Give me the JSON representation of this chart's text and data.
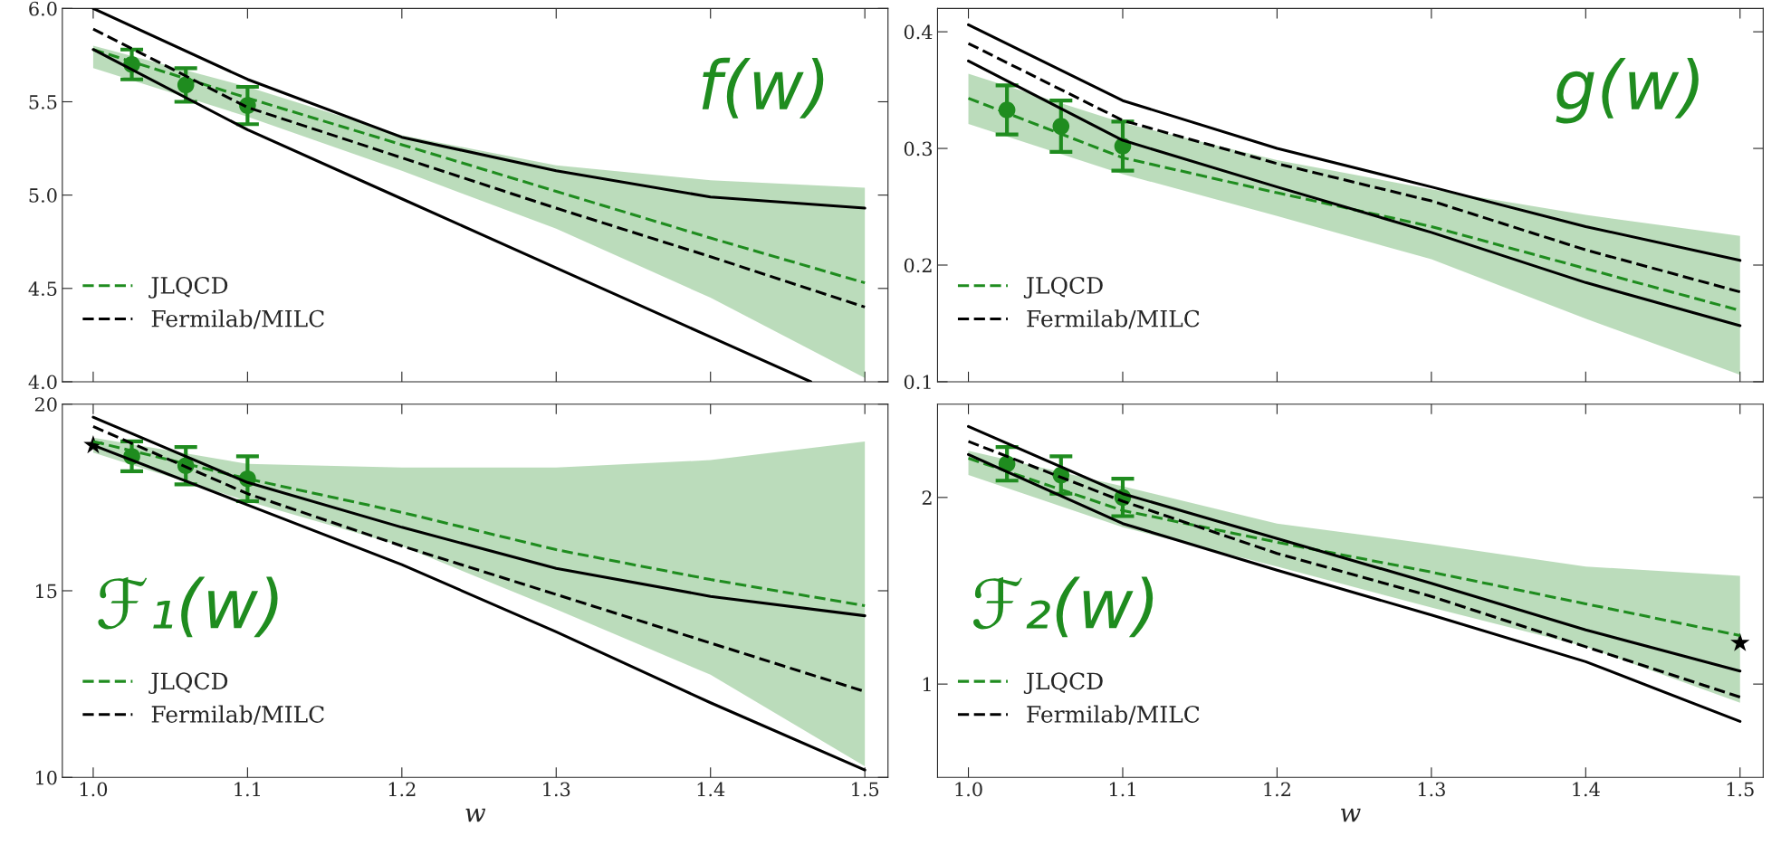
{
  "chart_data": [
    {
      "type": "line",
      "xlim": [
        0.98,
        1.515
      ],
      "ylim": [
        4.0,
        6.0
      ],
      "tick_labels": "y",
      "legend": "lower left",
      "annotations": [
        "f(w)"
      ],
      "xticks": [
        {
          "value": 1.0,
          "label": null
        },
        {
          "value": 1.1,
          "label": null
        },
        {
          "value": 1.2,
          "label": null
        },
        {
          "value": 1.3,
          "label": null
        },
        {
          "value": 1.4,
          "label": null
        },
        {
          "value": 1.5,
          "label": null
        }
      ],
      "yticks": [
        {
          "value": 4.0,
          "label": "4.0"
        },
        {
          "value": 4.5,
          "label": "4.5"
        },
        {
          "value": 5.0,
          "label": "5.0"
        },
        {
          "value": 5.5,
          "label": "5.5"
        },
        {
          "value": 6.0,
          "label": "6.0"
        }
      ],
      "series": [
        {
          "name": "JLQCD",
          "line_style": "dashed",
          "color": "#1f8c1f",
          "x": [
            1.0,
            1.1,
            1.2,
            1.3,
            1.4,
            1.5
          ],
          "values": [
            5.78,
            5.52,
            5.27,
            5.02,
            4.77,
            4.53
          ],
          "lower": [
            5.68,
            5.42,
            5.13,
            4.82,
            4.45,
            4.02
          ],
          "upper": [
            5.8,
            5.58,
            5.32,
            5.16,
            5.08,
            5.04
          ]
        },
        {
          "name": "Fermilab/MILC",
          "line_style": "dashed",
          "color": "#000000",
          "x": [
            1.0,
            1.1,
            1.2,
            1.3,
            1.4,
            1.5
          ],
          "values": [
            5.89,
            5.47,
            5.2,
            4.93,
            4.67,
            4.4
          ]
        },
        {
          "line_style": "solid",
          "color": "#000000",
          "x": [
            1.0,
            1.1,
            1.2,
            1.3,
            1.4,
            1.5
          ],
          "values": [
            6.0,
            5.62,
            5.31,
            5.13,
            4.99,
            4.93
          ]
        },
        {
          "line_style": "solid",
          "color": "#000000",
          "x": [
            1.0,
            1.1,
            1.2,
            1.3,
            1.4,
            1.465
          ],
          "values": [
            5.78,
            5.35,
            4.98,
            4.61,
            4.24,
            4.0
          ]
        },
        {
          "type": "scatter",
          "marker": "circle",
          "color": "#1f8c1f",
          "x": [
            1.025,
            1.06,
            1.1
          ],
          "values": [
            5.7,
            5.59,
            5.48
          ],
          "errors": [
            0.08,
            0.09,
            0.1
          ]
        }
      ]
    },
    {
      "type": "line",
      "xlim": [
        0.98,
        1.515
      ],
      "ylim": [
        0.1,
        0.42
      ],
      "tick_labels": "y",
      "legend": "lower left",
      "annotations": [
        "g(w)"
      ],
      "xticks": [
        {
          "value": 1.0,
          "label": null
        },
        {
          "value": 1.1,
          "label": null
        },
        {
          "value": 1.2,
          "label": null
        },
        {
          "value": 1.3,
          "label": null
        },
        {
          "value": 1.4,
          "label": null
        },
        {
          "value": 1.5,
          "label": null
        }
      ],
      "yticks": [
        0.1,
        0.2,
        0.3,
        0.4
      ],
      "series": [
        {
          "name": "JLQCD",
          "line_style": "dashed",
          "color": "#1f8c1f",
          "x": [
            1.0,
            1.1,
            1.2,
            1.3,
            1.4,
            1.5
          ],
          "values": [
            0.343,
            0.292,
            0.262,
            0.233,
            0.197,
            0.161
          ],
          "lower": [
            0.321,
            0.278,
            0.242,
            0.205,
            0.154,
            0.106
          ],
          "upper": [
            0.364,
            0.322,
            0.29,
            0.265,
            0.243,
            0.225
          ]
        },
        {
          "name": "Fermilab/MILC",
          "line_style": "dashed",
          "color": "#000000",
          "x": [
            1.0,
            1.1,
            1.2,
            1.3,
            1.4,
            1.5
          ],
          "values": [
            0.39,
            0.324,
            0.287,
            0.255,
            0.213,
            0.177
          ]
        },
        {
          "line_style": "solid",
          "color": "#000000",
          "x": [
            1.0,
            1.1,
            1.2,
            1.3,
            1.4,
            1.5
          ],
          "values": [
            0.406,
            0.341,
            0.3,
            0.267,
            0.233,
            0.204
          ]
        },
        {
          "line_style": "solid",
          "color": "#000000",
          "x": [
            1.0,
            1.1,
            1.2,
            1.3,
            1.4,
            1.5
          ],
          "values": [
            0.375,
            0.307,
            0.267,
            0.228,
            0.185,
            0.148
          ]
        },
        {
          "type": "scatter",
          "marker": "circle",
          "color": "#1f8c1f",
          "x": [
            1.025,
            1.06,
            1.1
          ],
          "values": [
            0.333,
            0.319,
            0.302
          ],
          "errors": [
            0.021,
            0.022,
            0.021
          ]
        }
      ]
    },
    {
      "type": "line",
      "xlim": [
        0.98,
        1.515
      ],
      "ylim": [
        10,
        20
      ],
      "xlabel": "w",
      "legend": "lower left",
      "annotations": [
        "ℱ₁(w)"
      ],
      "xticks": [
        {
          "value": 1.0,
          "label": "1.0"
        },
        {
          "value": 1.1,
          "label": "1.1"
        },
        {
          "value": 1.2,
          "label": "1.2"
        },
        {
          "value": 1.3,
          "label": "1.3"
        },
        {
          "value": 1.4,
          "label": "1.4"
        },
        {
          "value": 1.5,
          "label": "1.5"
        }
      ],
      "yticks": [
        10,
        15,
        20
      ],
      "series": [
        {
          "name": "JLQCD",
          "line_style": "dashed",
          "color": "#1f8c1f",
          "x": [
            1.0,
            1.1,
            1.2,
            1.3,
            1.4,
            1.5
          ],
          "values": [
            19.0,
            18.0,
            17.1,
            16.1,
            15.3,
            14.6
          ],
          "lower": [
            18.7,
            17.4,
            16.2,
            14.5,
            12.75,
            10.3
          ],
          "upper": [
            19.1,
            18.4,
            18.3,
            18.3,
            18.5,
            19.0
          ]
        },
        {
          "name": "Fermilab/MILC",
          "line_style": "dashed",
          "color": "#000000",
          "x": [
            1.0,
            1.1,
            1.2,
            1.3,
            1.4,
            1.5
          ],
          "values": [
            19.4,
            17.6,
            16.2,
            14.9,
            13.6,
            12.3
          ]
        },
        {
          "line_style": "solid",
          "color": "#000000",
          "x": [
            1.0,
            1.1,
            1.2,
            1.3,
            1.4,
            1.5
          ],
          "values": [
            19.65,
            17.9,
            16.7,
            15.6,
            14.85,
            14.33
          ]
        },
        {
          "line_style": "solid",
          "color": "#000000",
          "x": [
            1.0,
            1.1,
            1.2,
            1.3,
            1.4,
            1.5
          ],
          "values": [
            18.9,
            17.3,
            15.7,
            13.9,
            12.0,
            10.2
          ]
        },
        {
          "type": "scatter",
          "marker": "circle",
          "color": "#1f8c1f",
          "x": [
            1.025,
            1.06,
            1.1
          ],
          "values": [
            18.6,
            18.35,
            18.0
          ],
          "errors": [
            0.4,
            0.5,
            0.6
          ]
        },
        {
          "type": "scatter",
          "marker": "star",
          "color": "#000000",
          "x": [
            1.0
          ],
          "values": [
            18.9
          ]
        }
      ]
    },
    {
      "type": "line",
      "xlim": [
        0.98,
        1.515
      ],
      "ylim": [
        0.5,
        2.5
      ],
      "xlabel": "w",
      "legend": "lower left",
      "annotations": [
        "ℱ₂(w)"
      ],
      "xticks": [
        {
          "value": 1.0,
          "label": "1.0"
        },
        {
          "value": 1.1,
          "label": "1.1"
        },
        {
          "value": 1.2,
          "label": "1.2"
        },
        {
          "value": 1.3,
          "label": "1.3"
        },
        {
          "value": 1.4,
          "label": "1.4"
        },
        {
          "value": 1.5,
          "label": "1.5"
        }
      ],
      "yticks": [
        1,
        2
      ],
      "series": [
        {
          "name": "JLQCD",
          "line_style": "dashed",
          "color": "#1f8c1f",
          "x": [
            1.0,
            1.1,
            1.2,
            1.3,
            1.4,
            1.5
          ],
          "values": [
            2.21,
            1.93,
            1.76,
            1.6,
            1.43,
            1.26
          ],
          "lower": [
            2.12,
            1.84,
            1.63,
            1.41,
            1.2,
            0.9
          ],
          "upper": [
            2.25,
            2.06,
            1.86,
            1.75,
            1.63,
            1.58
          ]
        },
        {
          "name": "Fermilab/MILC",
          "line_style": "dashed",
          "color": "#000000",
          "x": [
            1.0,
            1.1,
            1.2,
            1.3,
            1.4,
            1.5
          ],
          "values": [
            2.3,
            1.98,
            1.7,
            1.47,
            1.2,
            0.93
          ]
        },
        {
          "line_style": "solid",
          "color": "#000000",
          "x": [
            1.0,
            1.1,
            1.2,
            1.3,
            1.4,
            1.5
          ],
          "values": [
            2.38,
            2.02,
            1.78,
            1.54,
            1.29,
            1.07
          ]
        },
        {
          "line_style": "solid",
          "color": "#000000",
          "x": [
            1.0,
            1.1,
            1.2,
            1.3,
            1.4,
            1.5
          ],
          "values": [
            2.23,
            1.86,
            1.61,
            1.37,
            1.12,
            0.8
          ]
        },
        {
          "type": "scatter",
          "marker": "circle",
          "color": "#1f8c1f",
          "x": [
            1.025,
            1.06,
            1.1
          ],
          "values": [
            2.18,
            2.12,
            2.0
          ],
          "errors": [
            0.09,
            0.1,
            0.1
          ]
        },
        {
          "type": "scatter",
          "marker": "star",
          "color": "#000000",
          "x": [
            1.5
          ],
          "values": [
            1.22
          ]
        }
      ]
    }
  ]
}
